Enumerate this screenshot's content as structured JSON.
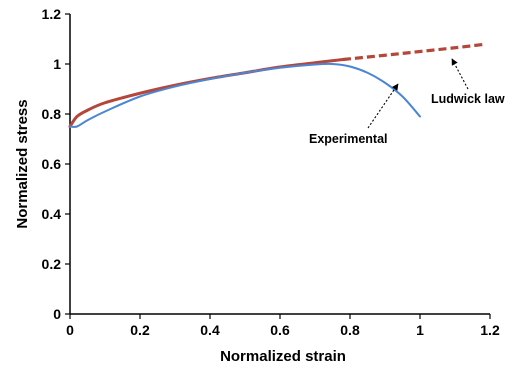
{
  "chart_data": {
    "type": "line",
    "xlabel": "Normalized strain",
    "ylabel": "Normalized stress",
    "xlim": [
      0,
      1.2
    ],
    "ylim": [
      0,
      1.2
    ],
    "xticks": [
      "0",
      "0.2",
      "0.4",
      "0.6",
      "0.8",
      "1",
      "1.2"
    ],
    "yticks": [
      "0",
      "0.2",
      "0.4",
      "0.6",
      "0.8",
      "1",
      "1.2"
    ],
    "grid": false,
    "series": [
      {
        "name": "Experimental",
        "color": "#4a86d4",
        "style": "solid",
        "x": [
          0.0,
          0.02,
          0.05,
          0.1,
          0.2,
          0.3,
          0.4,
          0.5,
          0.6,
          0.7,
          0.75,
          0.8,
          0.85,
          0.9,
          0.95,
          1.0
        ],
        "y": [
          0.75,
          0.75,
          0.775,
          0.81,
          0.87,
          0.91,
          0.94,
          0.965,
          0.985,
          0.998,
          1.0,
          0.99,
          0.965,
          0.925,
          0.87,
          0.79
        ]
      },
      {
        "name": "Ludwick law",
        "color": "#b5473a",
        "style": "solid-then-dashed",
        "dash_start_x": 0.78,
        "x": [
          0.0,
          0.02,
          0.05,
          0.1,
          0.2,
          0.3,
          0.4,
          0.5,
          0.6,
          0.7,
          0.78,
          0.9,
          1.0,
          1.1,
          1.18
        ],
        "y": [
          0.75,
          0.79,
          0.815,
          0.845,
          0.883,
          0.915,
          0.942,
          0.965,
          0.988,
          1.005,
          1.018,
          1.035,
          1.05,
          1.065,
          1.078
        ]
      }
    ],
    "annotations": [
      {
        "text": "Ludwick law",
        "points_to": "Ludwick law"
      },
      {
        "text": "Experimental",
        "points_to": "Experimental"
      }
    ]
  }
}
